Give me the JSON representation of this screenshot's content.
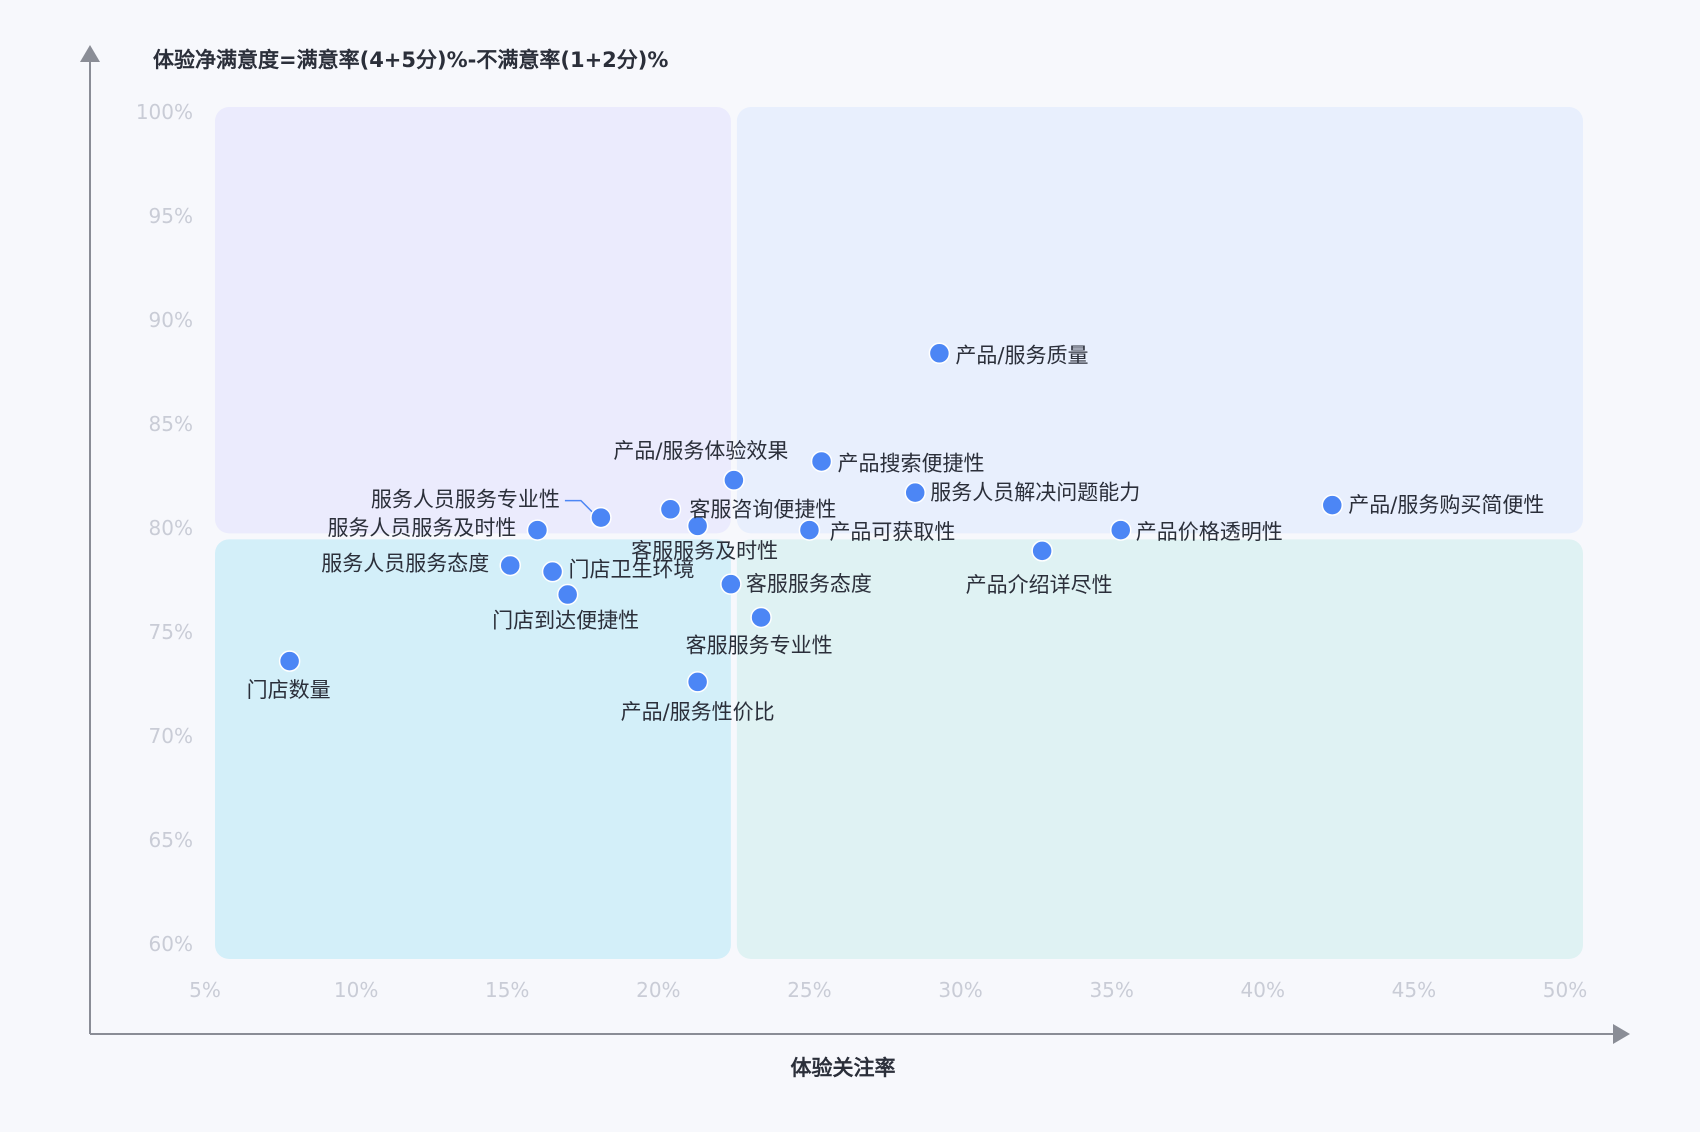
{
  "chart_data": {
    "type": "scatter",
    "ylabel": "体验净满意度=满意率(4+5分)%-不满意率(1+2分)%",
    "xlabel": "体验关注率",
    "xlim": [
      5,
      50
    ],
    "ylim": [
      60,
      100
    ],
    "x_ticks": [
      "5%",
      "10%",
      "15%",
      "20%",
      "25%",
      "30%",
      "35%",
      "40%",
      "45%",
      "50%"
    ],
    "y_ticks": [
      "60%",
      "65%",
      "70%",
      "75%",
      "80%",
      "85%",
      "90%",
      "95%",
      "100%"
    ],
    "quadrant_split": {
      "x": 22.5,
      "y": 79.6
    },
    "colors": {
      "point": "#4c86f5",
      "q_top_left": "#ebebfd",
      "q_top_right": "#e8effd",
      "q_bottom_left": "#d3eff9",
      "q_bottom_right": "#dff2f3",
      "axis": "#8a8d96"
    },
    "points": [
      {
        "name": "产品/服务购买简便性",
        "x": 42.3,
        "y": 81.1
      },
      {
        "name": "产品/服务质量",
        "x": 29.3,
        "y": 88.4
      },
      {
        "name": "产品搜索便捷性",
        "x": 25.4,
        "y": 83.2
      },
      {
        "name": "服务人员解决问题能力",
        "x": 28.5,
        "y": 81.7
      },
      {
        "name": "产品价格透明性",
        "x": 35.3,
        "y": 79.9
      },
      {
        "name": "产品可获取性",
        "x": 25.0,
        "y": 79.9
      },
      {
        "name": "产品介绍详尽性",
        "x": 32.7,
        "y": 78.9
      },
      {
        "name": "产品/服务体验效果",
        "x": 22.5,
        "y": 82.3
      },
      {
        "name": "客服咨询便捷性",
        "x": 20.4,
        "y": 80.9
      },
      {
        "name": "客服服务及时性",
        "x": 21.3,
        "y": 80.1
      },
      {
        "name": "服务人员服务专业性",
        "x": 18.1,
        "y": 80.5
      },
      {
        "name": "服务人员服务及时性",
        "x": 16.0,
        "y": 79.9
      },
      {
        "name": "服务人员服务态度",
        "x": 15.1,
        "y": 78.2
      },
      {
        "name": "门店卫生环境",
        "x": 16.5,
        "y": 77.9
      },
      {
        "name": "门店到达便捷性",
        "x": 17.0,
        "y": 76.8
      },
      {
        "name": "客服服务态度",
        "x": 22.4,
        "y": 77.3
      },
      {
        "name": "客服服务专业性",
        "x": 23.4,
        "y": 75.7
      },
      {
        "name": "门店数量",
        "x": 7.8,
        "y": 73.6
      },
      {
        "name": "产品/服务性价比",
        "x": 21.3,
        "y": 72.6
      }
    ]
  }
}
